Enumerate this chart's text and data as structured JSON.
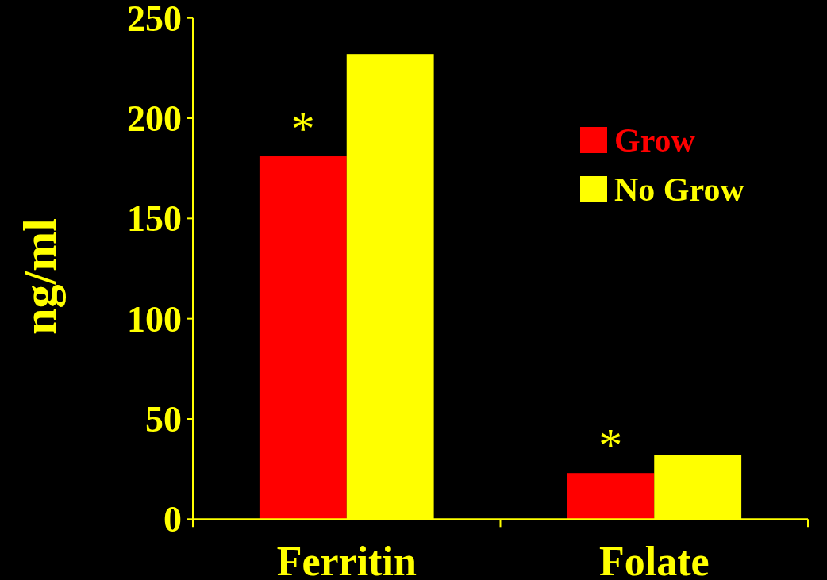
{
  "chart_data": {
    "type": "bar",
    "categories": [
      "Ferritin",
      "Folate"
    ],
    "series": [
      {
        "name": "Grow",
        "color": "#ff0000",
        "values": [
          181,
          23
        ]
      },
      {
        "name": "No Grow",
        "color": "#ffff00",
        "values": [
          232,
          32
        ]
      }
    ],
    "ylabel": "ng/ml",
    "ylim": [
      0,
      250
    ],
    "yticks": [
      0,
      50,
      100,
      150,
      200,
      250
    ],
    "legend": "top right",
    "annotations": [
      "*",
      "*"
    ]
  }
}
